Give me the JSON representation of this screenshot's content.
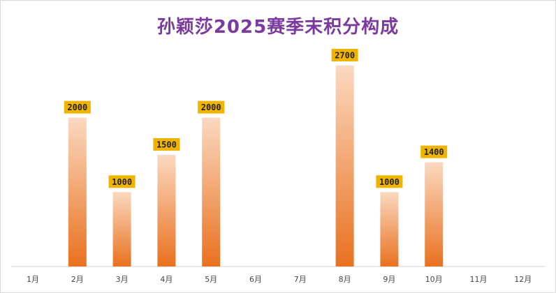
{
  "chart_data": {
    "type": "bar",
    "title": "孙颖莎2025赛季末积分构成",
    "categories": [
      "1月",
      "2月",
      "3月",
      "4月",
      "5月",
      "6月",
      "7月",
      "8月",
      "9月",
      "10月",
      "11月",
      "12月"
    ],
    "values": [
      null,
      2000,
      1000,
      1500,
      2000,
      null,
      null,
      2700,
      1000,
      1400,
      null,
      null
    ],
    "data_labels": [
      "",
      "2000",
      "1000",
      "1500",
      "2000",
      "",
      "",
      "2700",
      "1000",
      "1400",
      "",
      ""
    ],
    "ylim": [
      0,
      2700
    ],
    "grid": false,
    "legend": "none",
    "colors": {
      "bar_top": "#fbd9c0",
      "bar_bottom": "#e8711f",
      "label_bg": "#f0b400",
      "title": "#7b3b9e",
      "axis": "#d0d0d0"
    }
  }
}
